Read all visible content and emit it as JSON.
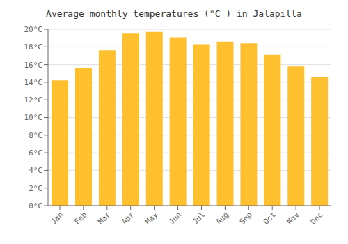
{
  "chart_data": {
    "type": "bar",
    "title": "Average monthly temperatures (°C ) in Jalapilla",
    "categories": [
      "Jan",
      "Feb",
      "Mar",
      "Apr",
      "May",
      "Jun",
      "Jul",
      "Aug",
      "Sep",
      "Oct",
      "Nov",
      "Dec"
    ],
    "values": [
      14.2,
      15.6,
      17.6,
      19.5,
      19.7,
      19.1,
      18.3,
      18.6,
      18.4,
      17.1,
      15.8,
      14.6
    ],
    "color": "#FFC030",
    "ylim": [
      0,
      20
    ],
    "yticks": [
      {
        "value": 0,
        "label": "0°C"
      },
      {
        "value": 2,
        "label": "2°C"
      },
      {
        "value": 4,
        "label": "4°C"
      },
      {
        "value": 6,
        "label": "6°C"
      },
      {
        "value": 8,
        "label": "8°C"
      },
      {
        "value": 10,
        "label": "10°C"
      },
      {
        "value": 12,
        "label": "12°C"
      },
      {
        "value": 14,
        "label": "14°C"
      },
      {
        "value": 16,
        "label": "16°C"
      },
      {
        "value": 18,
        "label": "18°C"
      },
      {
        "value": 20,
        "label": "20°C"
      }
    ],
    "grid": true
  }
}
